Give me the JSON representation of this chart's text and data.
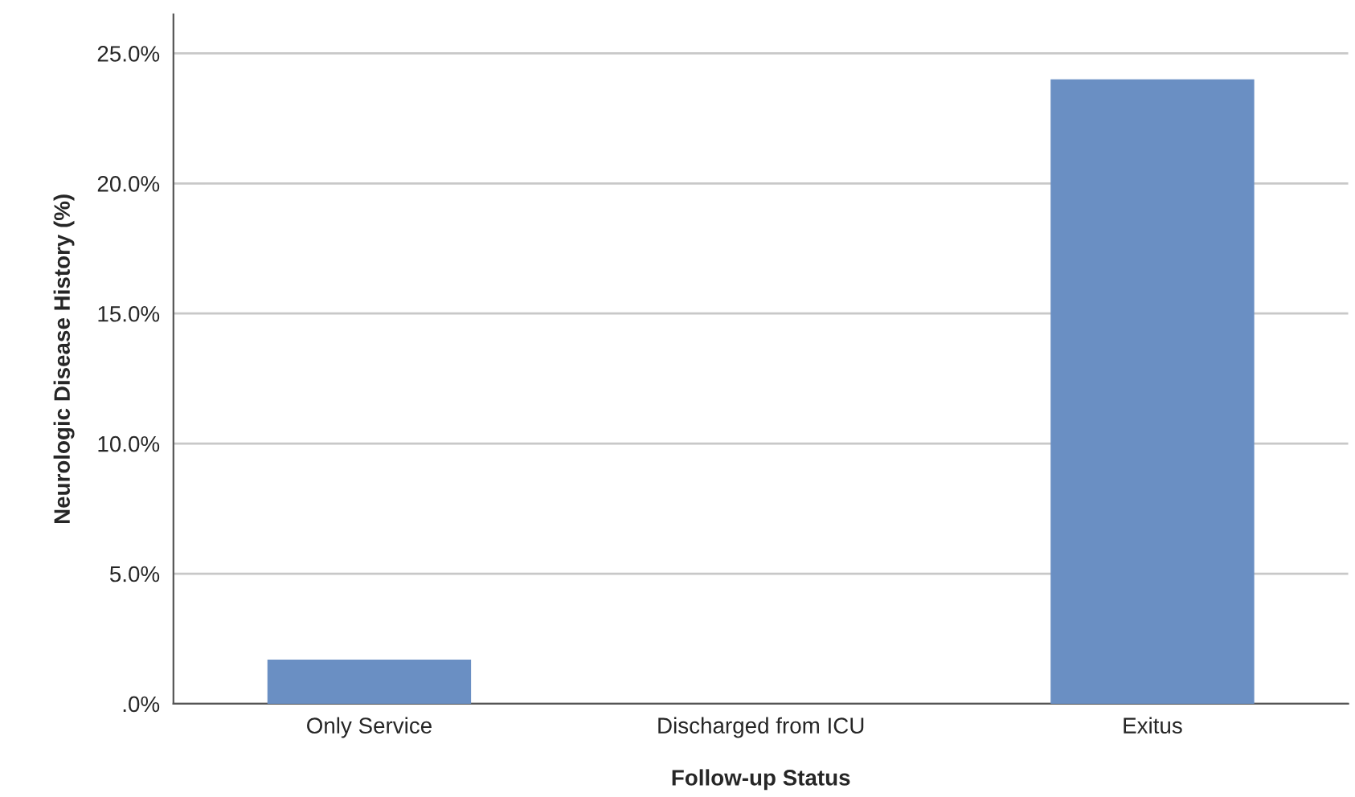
{
  "chart_data": {
    "type": "bar",
    "xlabel": "Follow-up Status",
    "ylabel": "Neurologic Disease History (%)",
    "categories": [
      "Only Service",
      "Discharged from ICU",
      "Exitus"
    ],
    "values": [
      1.7,
      0,
      24.0
    ],
    "color": "#6a8fc3",
    "ylim": [
      0,
      26.5
    ],
    "yticks": [
      {
        "value": 0,
        "label": ".0%"
      },
      {
        "value": 5,
        "label": "5.0%"
      },
      {
        "value": 10,
        "label": "10.0%"
      },
      {
        "value": 15,
        "label": "15.0%"
      },
      {
        "value": 20,
        "label": "20.0%"
      },
      {
        "value": 25,
        "label": "25.0%"
      }
    ],
    "grid": "y",
    "legend": false
  }
}
